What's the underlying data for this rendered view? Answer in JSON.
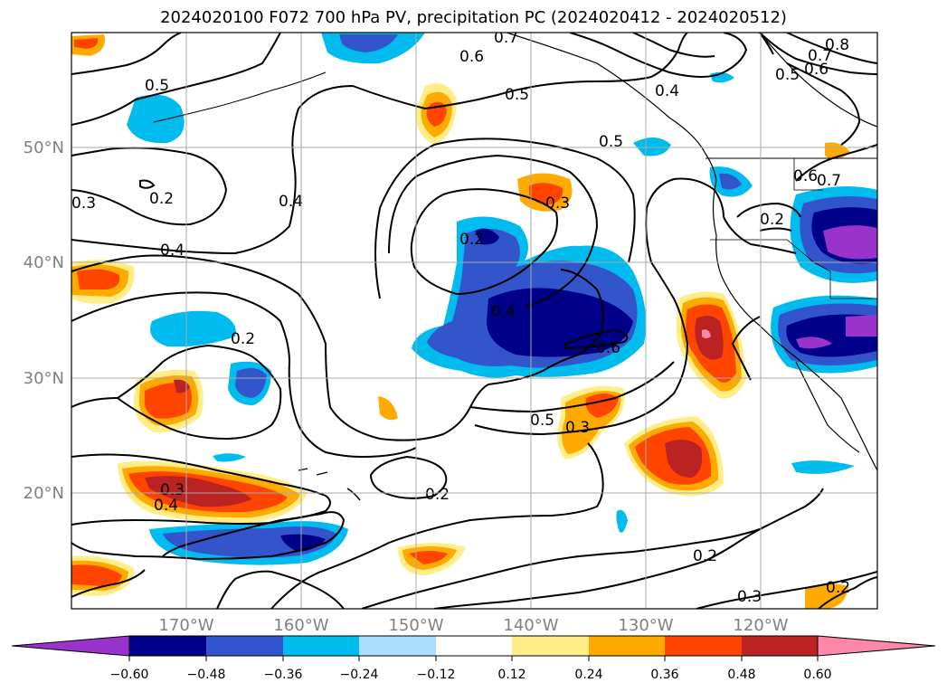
{
  "title": "2024020100 F072 700 hPa PV, precipitation PC (2024020412 - 2024020512)",
  "map": {
    "lon_labels": [
      "170°W",
      "160°W",
      "150°W",
      "140°W",
      "130°W",
      "120°W"
    ],
    "lat_labels": [
      "50°N",
      "40°N",
      "30°N",
      "20°N"
    ],
    "label_color": "#808080"
  },
  "contour_labels": [
    "0.5",
    "0.7",
    "0.6",
    "0.5",
    "0.4",
    "0.5",
    "0.8",
    "0.7",
    "0.6",
    "0.5",
    "0.6",
    "0.7",
    "0.3",
    "0.2",
    "0.4",
    "0.2",
    "0.3",
    "0.2",
    "0.4",
    "0.4",
    "0.6",
    "0.5",
    "0.3",
    "0.2",
    "0.3",
    "0.4",
    "0.2",
    "0.2",
    "0.3",
    "0.2"
  ],
  "colorbar": {
    "colors": [
      "#9933cc",
      "#000088",
      "#3355cc",
      "#00bbee",
      "#aaddff",
      "#ffffff",
      "#ffee88",
      "#ffaa00",
      "#ff4400",
      "#bb2222",
      "#ff88aa"
    ],
    "tick_labels": [
      "−0.60",
      "−0.48",
      "−0.36",
      "−0.24",
      "−0.12",
      "0.12",
      "0.24",
      "0.36",
      "0.48",
      "0.60"
    ]
  }
}
